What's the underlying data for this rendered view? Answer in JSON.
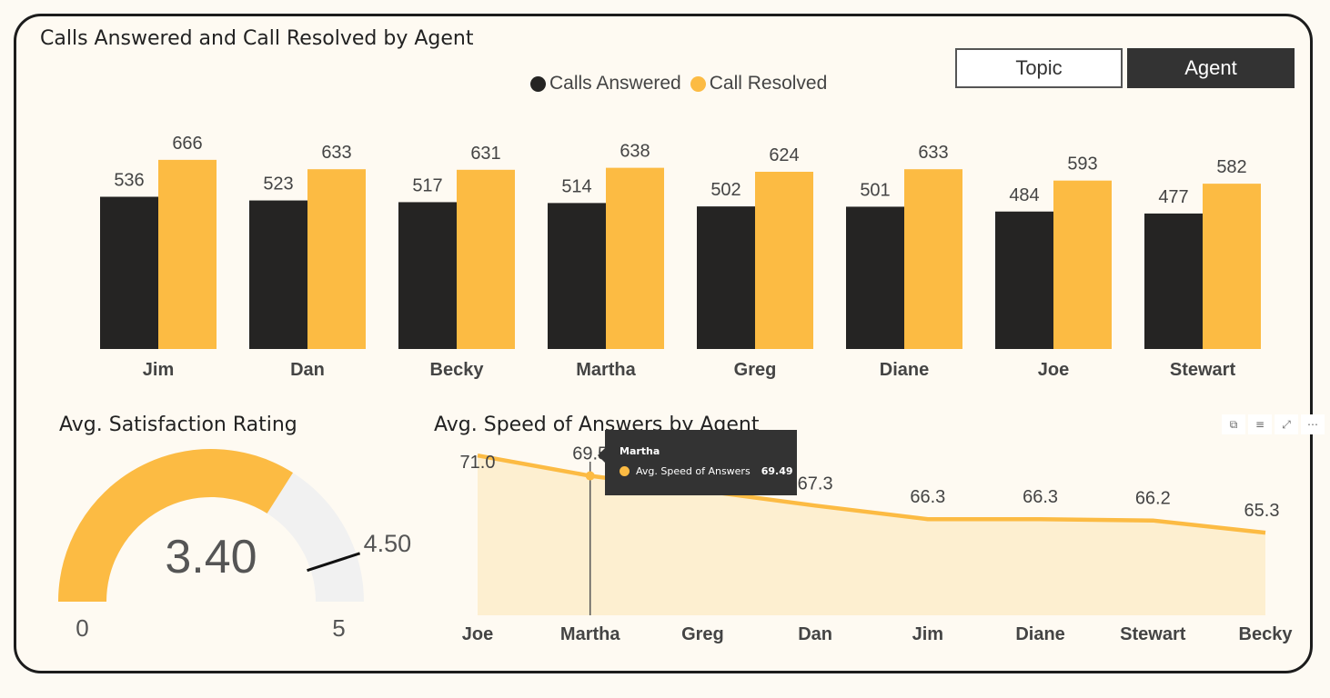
{
  "bar_title": "Calls Answered and Call Resolved by Agent",
  "toggles": {
    "topic": "Topic",
    "agent": "Agent"
  },
  "colors": {
    "answered": "#252423",
    "resolved": "#fcbb43",
    "area": "#fdefd0",
    "gauge_track": "#f1f1f1"
  },
  "gauge_title": "Avg. Satisfaction Rating",
  "gauge": {
    "value": 3.4,
    "value_label": "3.40",
    "target": 4.5,
    "target_label": "4.50",
    "min": 0,
    "min_label": "0",
    "max": 5,
    "max_label": "5"
  },
  "line_title": "Avg. Speed of Answers by Agent",
  "tooltip": {
    "name": "Martha",
    "measure": "Avg. Speed of Answers",
    "value": "69.49"
  },
  "visual_header_icons": [
    "copy-icon",
    "filter-icon",
    "focus-mode-icon",
    "more-options-icon"
  ],
  "chart_data": [
    {
      "type": "bar",
      "title": "Calls Answered and Call Resolved by Agent",
      "categories": [
        "Jim",
        "Dan",
        "Becky",
        "Martha",
        "Greg",
        "Diane",
        "Joe",
        "Stewart"
      ],
      "series": [
        {
          "name": "Calls Answered",
          "values": [
            536,
            523,
            517,
            514,
            502,
            501,
            484,
            477
          ]
        },
        {
          "name": "Call Resolved",
          "values": [
            666,
            633,
            631,
            638,
            624,
            633,
            593,
            582
          ]
        }
      ],
      "legend": "top-center",
      "ylim": [
        0,
        700
      ],
      "grid": false
    },
    {
      "type": "area",
      "title": "Avg. Speed of Answers by Agent",
      "categories": [
        "Joe",
        "Martha",
        "Greg",
        "Dan",
        "Jim",
        "Diane",
        "Stewart",
        "Becky"
      ],
      "values": [
        71.0,
        69.5,
        68.4,
        67.3,
        66.3,
        66.3,
        66.2,
        65.3
      ],
      "labels": [
        "71.0",
        "69.5",
        "68.4",
        "67.3",
        "66.3",
        "66.3",
        "66.2",
        "65.3"
      ],
      "ylim": [
        59.2,
        72.5
      ],
      "grid": false
    }
  ]
}
